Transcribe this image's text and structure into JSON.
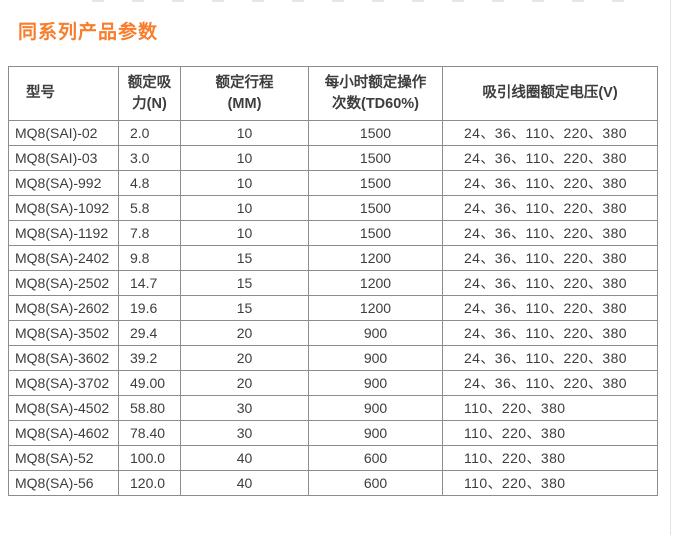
{
  "page": {
    "title": "同系列产品参数",
    "title_color": "#f87d2c",
    "background_color": "#ffffff",
    "border_color": "#8c8c8c",
    "text_color": "#3d3d3d"
  },
  "table": {
    "columns": [
      {
        "key": "model",
        "label": "型号"
      },
      {
        "key": "force",
        "label": "额定吸\n力(N)"
      },
      {
        "key": "stroke",
        "label": "额定行程\n(MM)"
      },
      {
        "key": "ops",
        "label": "每小时额定操作\n次数(TD60%)"
      },
      {
        "key": "voltage",
        "label": "吸引线圈额定电压(V)"
      }
    ],
    "rows": [
      [
        "MQ8(SAI)-02",
        "2.0",
        "10",
        "1500",
        "24、36、110、220、380"
      ],
      [
        "MQ8(SAI)-03",
        "3.0",
        "10",
        "1500",
        "24、36、110、220、380"
      ],
      [
        "MQ8(SA)-992",
        "4.8",
        "10",
        "1500",
        "24、36、110、220、380"
      ],
      [
        "MQ8(SA)-1092",
        "5.8",
        "10",
        "1500",
        "24、36、110、220、380"
      ],
      [
        "MQ8(SA)-1192",
        "7.8",
        "10",
        "1500",
        "24、36、110、220、380"
      ],
      [
        "MQ8(SA)-2402",
        "9.8",
        "15",
        "1200",
        "24、36、110、220、380"
      ],
      [
        "MQ8(SA)-2502",
        "14.7",
        "15",
        "1200",
        "24、36、110、220、380"
      ],
      [
        "MQ8(SA)-2602",
        "19.6",
        "15",
        "1200",
        "24、36、110、220、380"
      ],
      [
        "MQ8(SA)-3502",
        "29.4",
        "20",
        "900",
        "24、36、110、220、380"
      ],
      [
        "MQ8(SA)-3602",
        "39.2",
        "20",
        "900",
        "24、36、110、220、380"
      ],
      [
        "MQ8(SA)-3702",
        "49.00",
        "20",
        "900",
        "24、36、110、220、380"
      ],
      [
        "MQ8(SA)-4502",
        "58.80",
        "30",
        "900",
        "110、220、380"
      ],
      [
        "MQ8(SA)-4602",
        "78.40",
        "30",
        "900",
        "110、220、380"
      ],
      [
        "MQ8(SA)-52",
        "100.0",
        "40",
        "600",
        "110、220、380"
      ],
      [
        "MQ8(SA)-56",
        "120.0",
        "40",
        "600",
        "110、220、380"
      ]
    ]
  }
}
